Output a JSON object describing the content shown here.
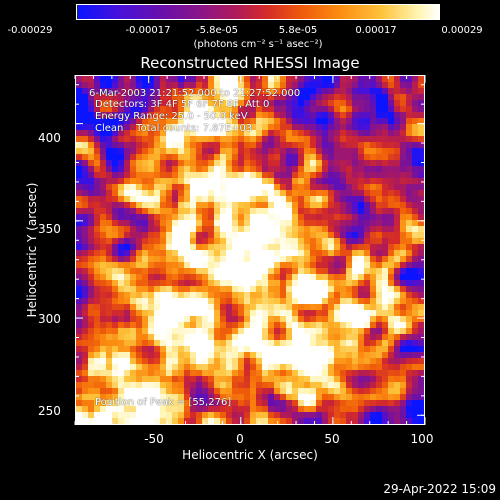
{
  "colorbar": {
    "ticks": [
      "-0.00029",
      "-0.00017",
      "-5.8e-05",
      "5.8e-05",
      "0.00017",
      "0.00029"
    ],
    "unit_label": "(photons cm⁻² s⁻¹ asec⁻²)"
  },
  "chart_data": {
    "type": "heatmap",
    "title": "Reconstructed RHESSI Image",
    "xlabel": "Heliocentric X (arcsec)",
    "ylabel": "Heliocentric Y (arcsec)",
    "xlim": [
      -90,
      100
    ],
    "ylim": [
      245,
      425
    ],
    "x_ticks": [
      "-50",
      "0",
      "50",
      "100"
    ],
    "y_ticks": [
      "250",
      "300",
      "350",
      "400"
    ],
    "x_tick_values": [
      -50,
      0,
      50,
      100
    ],
    "y_tick_values": [
      250,
      300,
      350,
      400
    ],
    "value_range": [
      -0.00029,
      0.00029
    ],
    "colormap": [
      "#0a14ff",
      "#4a10d8",
      "#6a10a8",
      "#8a1488",
      "#b01a58",
      "#d32a2a",
      "#ee5a0a",
      "#fb8a10",
      "#fdc23a",
      "#fff4b0",
      "#ffffff"
    ],
    "peak": {
      "x": 55,
      "y": 276
    }
  },
  "annotations": {
    "time_range": "6-Mar-2003 21:21:52.000 to 21:27:52.000",
    "detectors": "Detectors: 3F 4F 5F 6F 7F 8F, Att 0",
    "energy_range": "Energy Range: 25.0 - 50.0 keV",
    "clean_line": "Clean    Total counts: 7.87E+03",
    "peak_position": "Position of Peak = [55,276]"
  },
  "timestamp": "29-Apr-2022 15:09"
}
